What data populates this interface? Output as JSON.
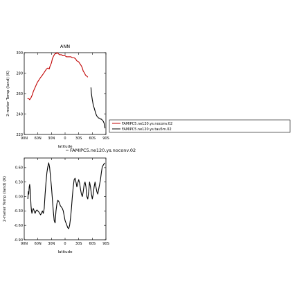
{
  "chart_data": [
    {
      "type": "line",
      "title": "ANN",
      "xlabel": "latitude",
      "ylabel": "2-meter Temp (land) (K)",
      "x_ticks": [
        "90N",
        "60N",
        "30N",
        "0",
        "30S",
        "60S",
        "90S"
      ],
      "y_ticks": [
        "220",
        "240",
        "260",
        "280",
        "300"
      ],
      "xlim": [
        90,
        -90
      ],
      "ylim": [
        220,
        300
      ],
      "legend_placement": "right",
      "series": [
        {
          "name": "FAMIPC5.ne120.ys.noconv.02",
          "color": "#c00000",
          "x": [
            83,
            80,
            78,
            75,
            72,
            70,
            67,
            64,
            61,
            58,
            55,
            52,
            50,
            47,
            44,
            41,
            38,
            35,
            33,
            30,
            28,
            25,
            22,
            20,
            18,
            15,
            12,
            10,
            8,
            5,
            2,
            0,
            -3,
            -6,
            -10,
            -13,
            -16,
            -20,
            -23,
            -26,
            -30,
            -33,
            -36,
            -38,
            -40,
            -43,
            -45,
            -48,
            -50
          ],
          "y": [
            255,
            255,
            254,
            256,
            259,
            262,
            265,
            268,
            271,
            273,
            275,
            277,
            278,
            280,
            282,
            284,
            285,
            284,
            287,
            290,
            294,
            297,
            299,
            299,
            300,
            299,
            298,
            298,
            298,
            297,
            297,
            297,
            296,
            296,
            296,
            296,
            295,
            295,
            294,
            292,
            291,
            289,
            287,
            285,
            282,
            280,
            278,
            277,
            276
          ]
        },
        {
          "name": "FAMIPC5.ne120.ys.tau5m.02",
          "color": "#000000",
          "x": [
            -57,
            -58,
            -60,
            -62,
            -64,
            -66,
            -68,
            -70,
            -72,
            -74,
            -76,
            -78,
            -80,
            -82,
            -84,
            -86,
            -88
          ],
          "y": [
            266,
            260,
            254,
            249,
            246,
            243,
            240,
            238,
            237,
            236,
            236,
            235,
            235,
            234,
            233,
            231,
            226
          ]
        }
      ]
    },
    {
      "type": "line",
      "title": "FAMIPC5.ne120.ys.noconv.02",
      "xlabel": "latitude",
      "ylabel": "2-meter Temp (land) (K)",
      "x_ticks": [
        "90N",
        "60N",
        "30N",
        "0",
        "30S",
        "60S",
        "90S"
      ],
      "y_ticks": [
        "-0.90",
        "-0.60",
        "-0.30",
        "0.00",
        "0.30",
        "0.60"
      ],
      "xlim": [
        90,
        -90
      ],
      "ylim": [
        -0.9,
        0.8
      ],
      "series": [
        {
          "color": "#000000",
          "x": [
            82,
            81,
            80,
            79,
            78,
            77,
            76,
            75,
            74,
            73,
            72,
            70,
            68,
            66,
            64,
            62,
            60,
            58,
            56,
            54,
            52,
            50,
            48,
            46,
            44,
            42,
            40,
            38,
            36,
            34,
            32,
            30,
            28,
            26,
            24,
            22,
            20,
            18,
            16,
            14,
            12,
            10,
            8,
            6,
            4,
            2,
            0,
            -2,
            -4,
            -6,
            -8,
            -10,
            -12,
            -14,
            -16,
            -18,
            -20,
            -22,
            -24,
            -26,
            -28,
            -30,
            -32,
            -34,
            -36,
            -38,
            -40,
            -42,
            -44,
            -46,
            -48,
            -50,
            -52,
            -54,
            -56,
            -58,
            -60,
            -62,
            -64,
            -66,
            -68,
            -70,
            -72,
            -74,
            -76,
            -78,
            -80,
            -82,
            -84,
            -86,
            -88
          ],
          "y": [
            -0.05,
            0.1,
            0.05,
            0.2,
            0.25,
            0.15,
            0.0,
            -0.2,
            -0.3,
            -0.35,
            -0.3,
            -0.25,
            -0.3,
            -0.35,
            -0.3,
            -0.28,
            -0.3,
            -0.32,
            -0.35,
            -0.38,
            -0.35,
            -0.3,
            -0.35,
            -0.25,
            0.05,
            0.3,
            0.5,
            0.62,
            0.7,
            0.6,
            0.4,
            0.2,
            -0.05,
            -0.3,
            -0.5,
            -0.55,
            -0.3,
            -0.15,
            -0.08,
            -0.1,
            -0.15,
            -0.2,
            -0.22,
            -0.25,
            -0.3,
            -0.4,
            -0.5,
            -0.55,
            -0.6,
            -0.65,
            -0.67,
            -0.6,
            -0.45,
            -0.25,
            0.0,
            0.2,
            0.35,
            0.38,
            0.3,
            0.2,
            0.28,
            0.35,
            0.28,
            0.15,
            0.05,
            0.0,
            0.1,
            0.25,
            0.3,
            0.2,
            0.0,
            -0.05,
            0.1,
            0.3,
            0.2,
            0.05,
            -0.05,
            0.05,
            0.2,
            0.3,
            0.2,
            0.1,
            0.05,
            0.15,
            0.25,
            0.35,
            0.5,
            0.62,
            0.65,
            0.68,
            0.7
          ]
        }
      ]
    }
  ]
}
